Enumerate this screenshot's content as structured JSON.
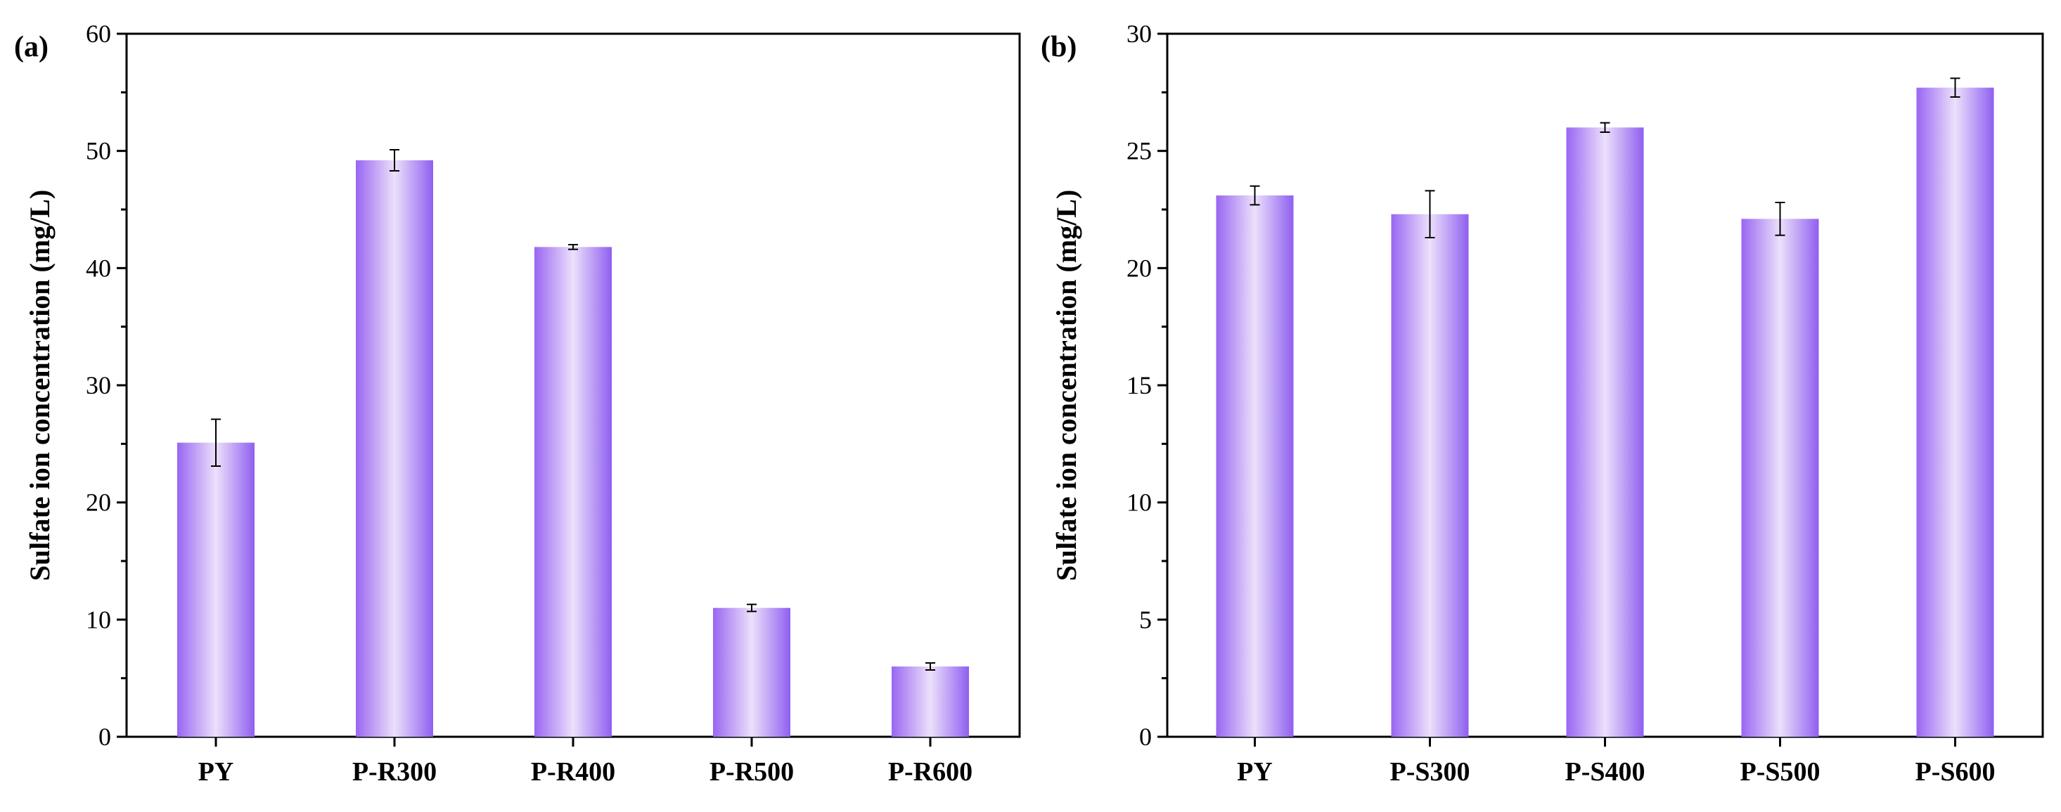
{
  "figure": {
    "type": "bar-chart-pair"
  },
  "style": {
    "bar_edge_color": "#8f5ff0",
    "bar_mid_color": "#ece0fb",
    "bar_dark_color": "#9966f2",
    "axis_color": "#000000"
  },
  "chart_data": [
    {
      "type": "bar",
      "panel_label": "(a)",
      "title": "",
      "xlabel": "",
      "ylabel": "Sulfate ion concentration (mg/L)",
      "ylim": [
        0,
        60
      ],
      "yticks": [
        "0",
        "10",
        "20",
        "30",
        "40",
        "50",
        "60"
      ],
      "categories": [
        "PY",
        "P-R300",
        "P-R400",
        "P-R500",
        "P-R600"
      ],
      "values": [
        25.1,
        49.2,
        41.8,
        11.0,
        6.0
      ],
      "errors": [
        2.0,
        0.9,
        0.2,
        0.3,
        0.3
      ]
    },
    {
      "type": "bar",
      "panel_label": "(b)",
      "title": "",
      "xlabel": "",
      "ylabel": "Sulfate ion concentration (mg/L)",
      "ylim": [
        0,
        30
      ],
      "yticks": [
        "0",
        "5",
        "10",
        "15",
        "20",
        "25",
        "30"
      ],
      "categories": [
        "PY",
        "P-S300",
        "P-S400",
        "P-S500",
        "P-S600"
      ],
      "values": [
        23.1,
        22.3,
        26.0,
        22.1,
        27.7
      ],
      "errors": [
        0.4,
        1.0,
        0.2,
        0.7,
        0.4
      ]
    }
  ]
}
